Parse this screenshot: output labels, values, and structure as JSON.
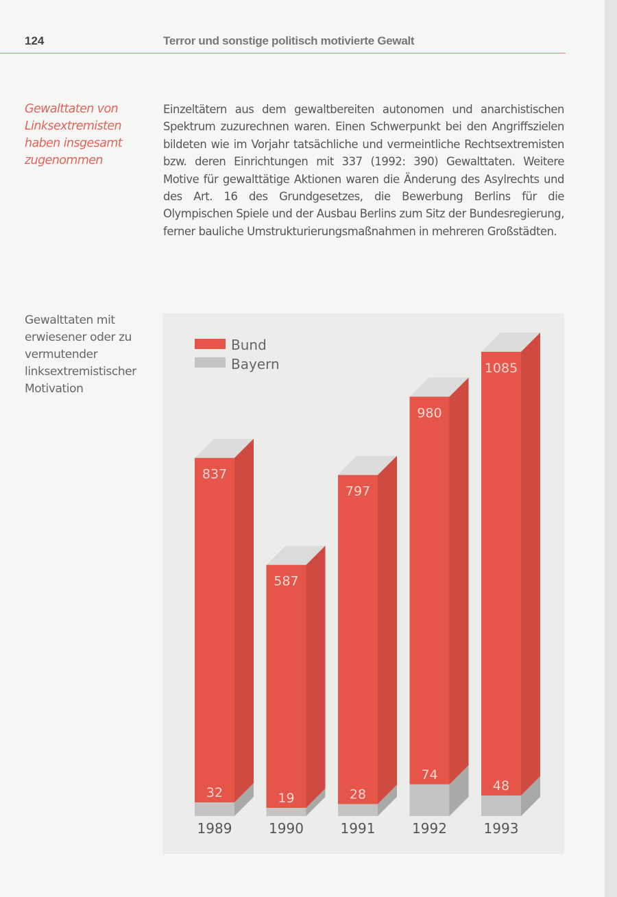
{
  "header": {
    "page_number": "124",
    "running_title": "Terror und sonstige politisch motivierte Gewalt"
  },
  "margin_note": "Gewalttaten von Linksextremisten haben insgesamt zugenommen",
  "body_text": "Einzeltätern aus dem gewaltbereiten autonomen und anarchistischen Spektrum zuzurechnen waren. Einen Schwerpunkt bei den Angriffszielen bildeten wie im Vorjahr tatsächliche und vermeintliche Rechtsextremisten bzw. deren Einrichtungen mit 337 (1992: 390) Gewalttaten. Weitere Motive für gewalttätige Aktionen waren die Änderung des Asylrechts und des Art. 16 des Grundgesetzes, die Bewerbung Berlins für die Olympischen Spiele und der Ausbau Berlins zum Sitz der Bundesregierung, ferner bauliche Umstrukturierungsmaßnahmen in mehreren Großstädten.",
  "chart_caption": "Gewalttaten mit erwiesener oder zu vermutender linksextremistischer Motivation",
  "chart_data": {
    "type": "bar",
    "style": "3d-columns, Bayern drawn as base segment inside Bund column",
    "categories": [
      "1989",
      "1990",
      "1991",
      "1992",
      "1993"
    ],
    "series": [
      {
        "name": "Bund",
        "values": [
          837,
          587,
          797,
          980,
          1085
        ],
        "color": "#e5554a"
      },
      {
        "name": "Bayern",
        "values": [
          32,
          19,
          28,
          74,
          48
        ],
        "color": "#c4c4c2"
      }
    ],
    "legend_placement": "top-left",
    "grid": false,
    "ylim": [
      0,
      1085
    ],
    "axis_visible": false,
    "data_labels": true
  }
}
